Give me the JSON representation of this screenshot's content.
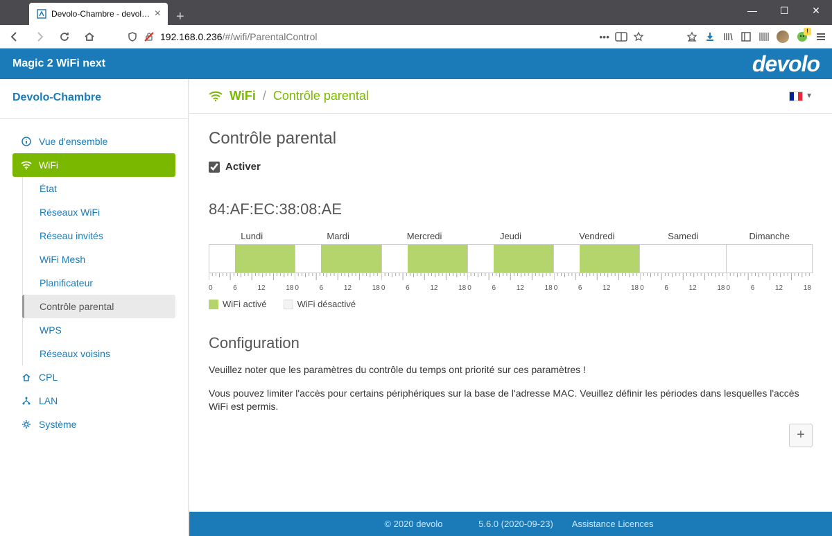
{
  "browser": {
    "tab_title": "Devolo-Chambre - devolo Mag",
    "url_host": "192.168.0.236",
    "url_path": "/#/wifi/ParentalControl"
  },
  "banner": {
    "product": "Magic 2 WiFi next",
    "brand": "devolo"
  },
  "sidebar": {
    "device": "Devolo-Chambre",
    "items": {
      "overview": "Vue d'ensemble",
      "wifi": "WiFi",
      "cpl": "CPL",
      "lan": "LAN",
      "system": "Système"
    },
    "wifi_sub": {
      "etat": "État",
      "reseaux": "Réseaux WiFi",
      "invites": "Réseau invités",
      "mesh": "WiFi Mesh",
      "planif": "Planificateur",
      "parental": "Contrôle parental",
      "wps": "WPS",
      "voisins": "Réseaux voisins"
    }
  },
  "breadcrumb": {
    "root": "WiFi",
    "sep": "/",
    "leaf": "Contrôle parental"
  },
  "flag_colors": [
    "#002395",
    "#ffffff",
    "#ed2939"
  ],
  "page": {
    "title": "Contrôle parental",
    "activate": "Activer",
    "activate_checked": true,
    "mac": "84:AF:EC:38:08:AE",
    "config_title": "Configuration",
    "note1": "Veuillez noter que les paramètres du contrôle du temps ont priorité sur ces paramètres !",
    "note2": "Vous pouvez limiter l'accès pour certains périphériques sur la base de l'adresse MAC. Veuillez définir les périodes dans lesquelles l'accès WiFi est permis."
  },
  "schedule": {
    "days": [
      "Lundi",
      "Mardi",
      "Mercredi",
      "Jeudi",
      "Vendredi",
      "Samedi",
      "Dimanche"
    ],
    "tick_labels": [
      "0",
      "6",
      "12",
      "18"
    ],
    "active_fill_color": "#b4d56b",
    "inactive_fill_color": "#f3f3f3",
    "border_color": "#cccccc",
    "ranges": [
      {
        "start_pct": 30,
        "end_pct": 100
      },
      {
        "start_pct": 30,
        "end_pct": 100
      },
      {
        "start_pct": 30,
        "end_pct": 100
      },
      {
        "start_pct": 30,
        "end_pct": 100
      },
      {
        "start_pct": 30,
        "end_pct": 100
      },
      {
        "start_pct": 0,
        "end_pct": 0
      },
      {
        "start_pct": 0,
        "end_pct": 0
      }
    ],
    "legend": {
      "active": "WiFi activé",
      "inactive": "WiFi désactivé"
    }
  },
  "footer": {
    "copyright": "© 2020   devolo",
    "version": "5.6.0 (2020-09-23)",
    "support": "Assistance",
    "licenses": "Licences"
  },
  "colors": {
    "brand_blue": "#1a7bb8",
    "brand_green": "#7ab800",
    "light_green": "#b4d56b"
  }
}
